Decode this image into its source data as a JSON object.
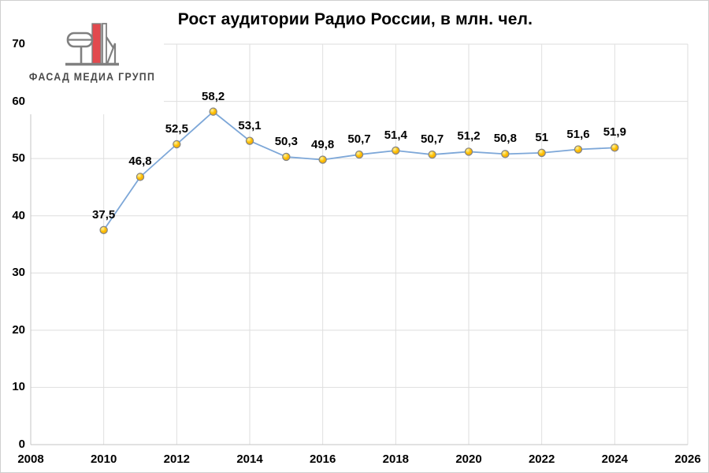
{
  "title": "Рост аудитории Радио России, в млн. чел.",
  "logo": {
    "text": "ФАСАД МЕДИА ГРУПП",
    "red": "#e2494e",
    "gray": "#808080",
    "text_color": "#4a4a4a"
  },
  "chart_data": {
    "type": "line",
    "title": "Рост аудитории Радио России, в млн. чел.",
    "x": [
      2010,
      2011,
      2012,
      2013,
      2014,
      2015,
      2016,
      2017,
      2018,
      2019,
      2020,
      2021,
      2022,
      2023,
      2024
    ],
    "values": [
      37.5,
      46.8,
      52.5,
      58.2,
      53.1,
      50.3,
      49.8,
      50.7,
      51.4,
      50.7,
      51.2,
      50.8,
      51,
      51.6,
      51.9
    ],
    "point_labels": [
      "37,5",
      "46,8",
      "52,5",
      "58,2",
      "53,1",
      "50,3",
      "49,8",
      "50,7",
      "51,4",
      "50,7",
      "51,2",
      "50,8",
      "51",
      "51,6",
      "51,9"
    ],
    "x_ticks": [
      2008,
      2010,
      2012,
      2014,
      2016,
      2018,
      2020,
      2022,
      2024,
      2026
    ],
    "y_ticks": [
      0,
      10,
      20,
      30,
      40,
      50,
      60,
      70
    ],
    "xlim": [
      2008,
      2026
    ],
    "ylim": [
      0,
      70
    ],
    "xlabel": "",
    "ylabel": "",
    "grid": true,
    "legend": false,
    "colors": {
      "line": "#7da7d8",
      "marker_fill": "#ffc000",
      "marker_highlight": "#fff3a6",
      "marker_shade": "#eda413",
      "marker_stroke": "#848484",
      "grid": "#dedede",
      "axis": "#c4c4c4",
      "text": "#000000"
    }
  }
}
